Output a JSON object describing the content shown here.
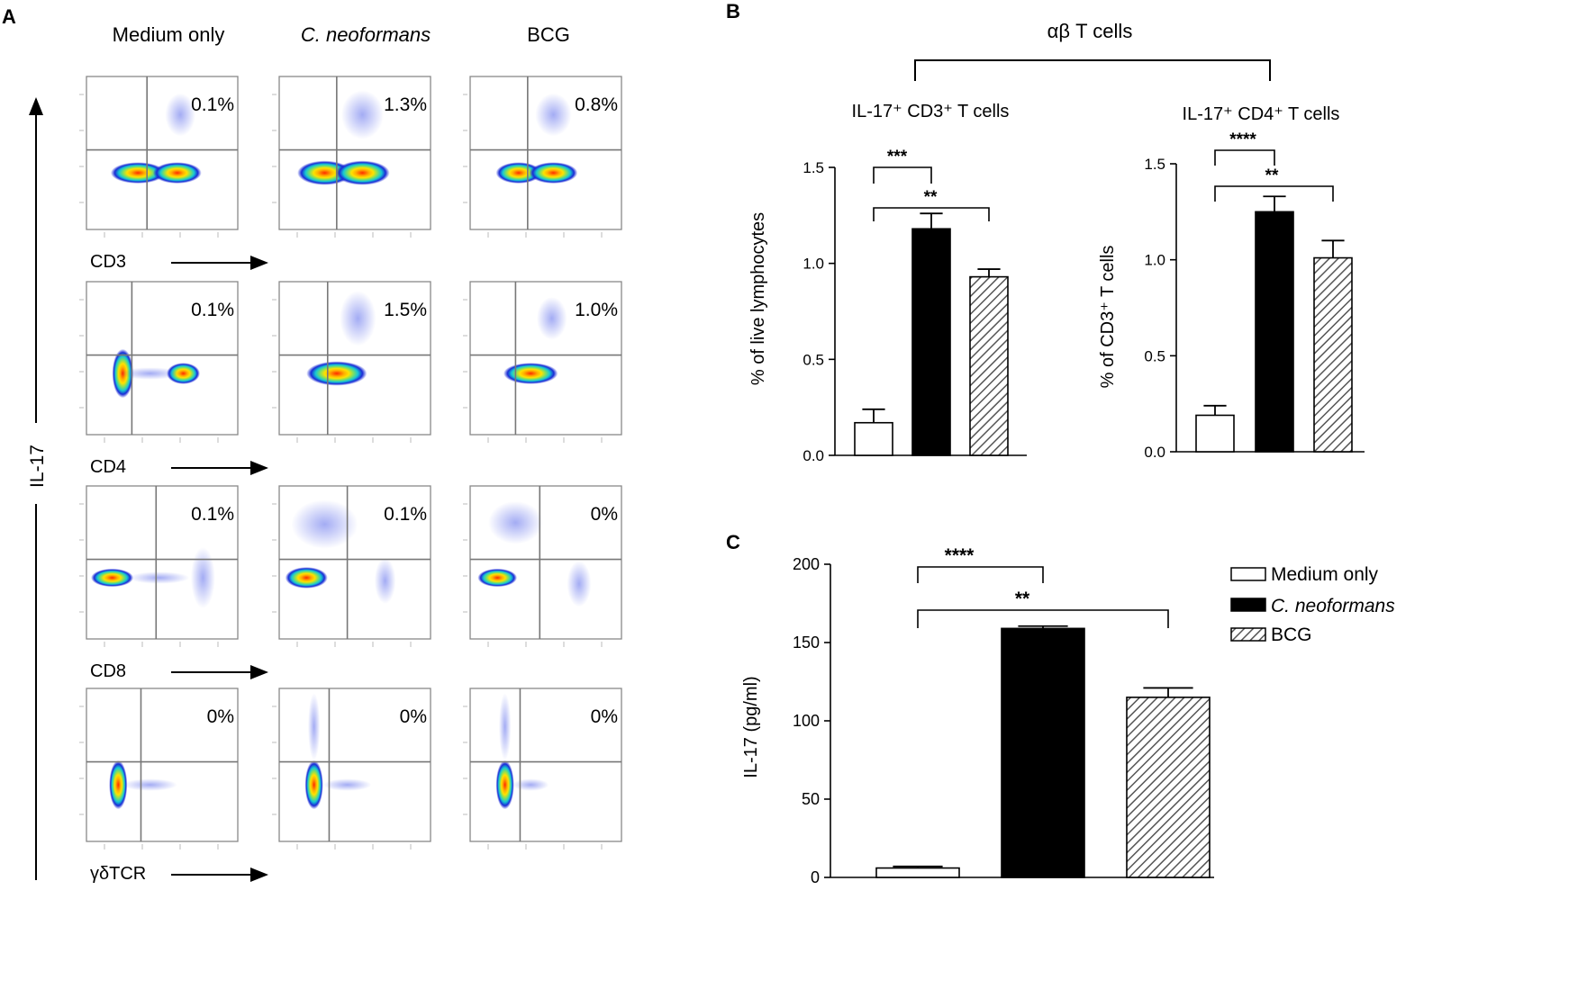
{
  "panel_letters": {
    "a": "A",
    "b": "B",
    "c": "C"
  },
  "flow": {
    "columns": [
      "Medium only",
      "C. neoformans",
      "BCG"
    ],
    "y_axis_label": "IL-17",
    "rows": [
      {
        "marker": "CD3",
        "percents": [
          "0.1%",
          "1.3%",
          "0.8%"
        ]
      },
      {
        "marker": "CD4",
        "percents": [
          "0.1%",
          "1.5%",
          "1.0%"
        ]
      },
      {
        "marker": "CD8",
        "percents": [
          "0.1%",
          "0.1%",
          "0%"
        ]
      },
      {
        "marker": "γδTCR",
        "percents": [
          "0%",
          "0%",
          "0%"
        ]
      }
    ]
  },
  "panel_b": {
    "group_title": "αβ T cells"
  },
  "legend": {
    "items": [
      "Medium only",
      "C. neoformans",
      "BCG"
    ]
  },
  "colors": {
    "medium_only": "#ffffff",
    "c_neoformans": "#000000",
    "bcg_hatch": "#555555",
    "density_core": "#ff2a00",
    "density_mid": "#ffe100",
    "density_low": "#16c8d4",
    "density_outer": "#1a2bd6"
  },
  "chart_data": [
    {
      "type": "bar",
      "panel": "B-left",
      "title": "IL-17⁺ CD3⁺ T cells",
      "categories": [
        "Medium only",
        "C. neoformans",
        "BCG"
      ],
      "values": [
        0.17,
        1.18,
        0.93
      ],
      "errors": [
        0.07,
        0.08,
        0.04
      ],
      "xlabel": "",
      "ylabel": "% of live lymphocytes",
      "ylim": [
        0,
        1.5
      ],
      "yticks": [
        "0.0",
        "0.5",
        "1.0",
        "1.5"
      ],
      "significance": [
        {
          "pair": [
            0,
            1
          ],
          "label": "***"
        },
        {
          "pair": [
            0,
            2
          ],
          "label": "**"
        }
      ]
    },
    {
      "type": "bar",
      "panel": "B-right",
      "title": "IL-17⁺ CD4⁺ T cells",
      "categories": [
        "Medium only",
        "C. neoformans",
        "BCG"
      ],
      "values": [
        0.19,
        1.25,
        1.01
      ],
      "errors": [
        0.05,
        0.08,
        0.09
      ],
      "xlabel": "",
      "ylabel": "% of CD3⁺ T cells",
      "ylim": [
        0,
        1.5
      ],
      "yticks": [
        "0.0",
        "0.5",
        "1.0",
        "1.5"
      ],
      "significance": [
        {
          "pair": [
            0,
            1
          ],
          "label": "****"
        },
        {
          "pair": [
            0,
            2
          ],
          "label": "**"
        }
      ]
    },
    {
      "type": "bar",
      "panel": "C",
      "title": "",
      "categories": [
        "Medium only",
        "C. neoformans",
        "BCG"
      ],
      "values": [
        6,
        159,
        115
      ],
      "errors": [
        1,
        1.5,
        6
      ],
      "xlabel": "",
      "ylabel": "IL-17 (pg/ml)",
      "ylim": [
        0,
        200
      ],
      "yticks": [
        "0",
        "50",
        "100",
        "150",
        "200"
      ],
      "significance": [
        {
          "pair": [
            0,
            1
          ],
          "label": "****"
        },
        {
          "pair": [
            0,
            2
          ],
          "label": "**"
        }
      ]
    }
  ]
}
